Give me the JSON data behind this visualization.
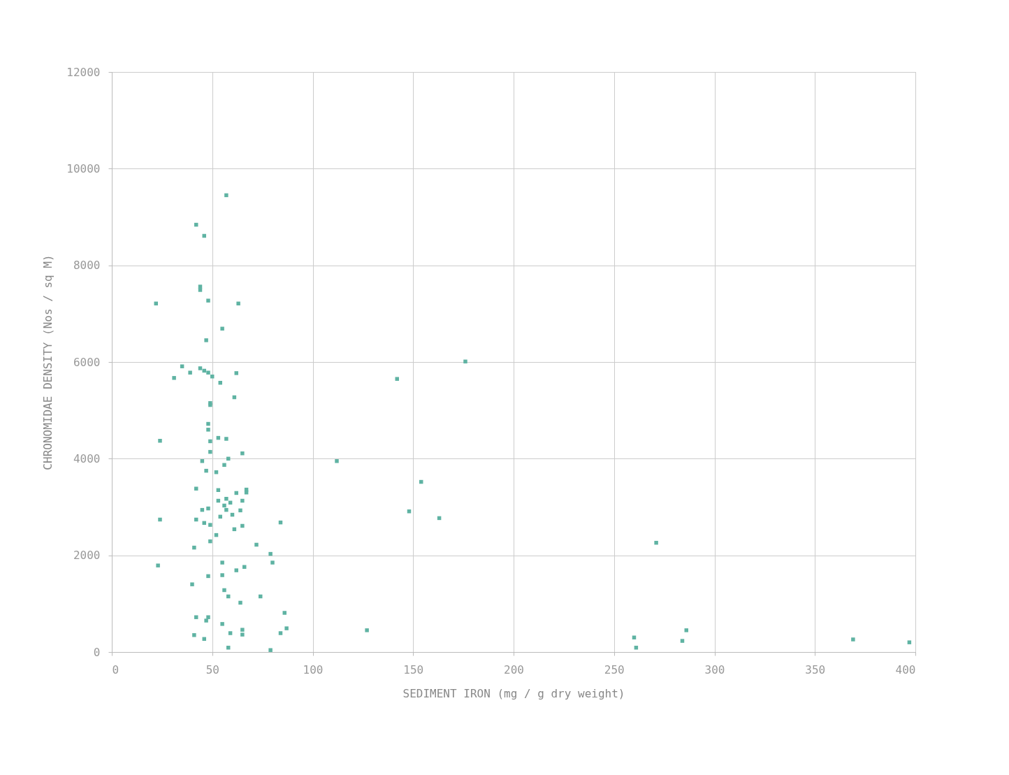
{
  "chart_data": {
    "type": "scatter",
    "xlabel": "SEDIMENT IRON (mg / g dry weight)",
    "ylabel": "CHRONOMIDAE DENSITY (Nos / sq M)",
    "xlim": [
      0,
      400
    ],
    "xticks": [
      0,
      50,
      100,
      150,
      200,
      250,
      300,
      350,
      400
    ],
    "ylim": [
      0,
      12000
    ],
    "yticks": [
      0,
      2000,
      4000,
      6000,
      8000,
      10000,
      12000
    ],
    "grid": true,
    "marker": "square",
    "series": [
      {
        "color": "#5fb3a3",
        "x": [
          57,
          42,
          46,
          44,
          44,
          48,
          22,
          63,
          55,
          47,
          35,
          31,
          39,
          44,
          46,
          48,
          50,
          62,
          54,
          49,
          61,
          49,
          48,
          48,
          53,
          57,
          49,
          49,
          65,
          58,
          45,
          56,
          47,
          52,
          24,
          42,
          53,
          62,
          67,
          67,
          53,
          57,
          65,
          56,
          59,
          45,
          48,
          57,
          64,
          54,
          60,
          24,
          42,
          46,
          49,
          61,
          65,
          84,
          52,
          49,
          41,
          72,
          79,
          80,
          23,
          55,
          48,
          55,
          62,
          66,
          40,
          56,
          58,
          64,
          74,
          86,
          87,
          84,
          42,
          48,
          47,
          41,
          46,
          55,
          59,
          65,
          65,
          58,
          79,
          112,
          142,
          176,
          154,
          148,
          163,
          127,
          271,
          260,
          261,
          286,
          284,
          369,
          397
        ],
        "values": [
          9450,
          8840,
          8610,
          7560,
          7490,
          7270,
          7210,
          7210,
          6690,
          6450,
          5910,
          5670,
          5780,
          5870,
          5820,
          5780,
          5700,
          5770,
          5570,
          5150,
          5270,
          5110,
          4720,
          4600,
          4430,
          4410,
          4360,
          4140,
          4110,
          4000,
          3950,
          3870,
          3750,
          3720,
          4370,
          3380,
          3350,
          3290,
          3360,
          3300,
          3130,
          3170,
          3130,
          3030,
          3090,
          2940,
          2970,
          2940,
          2930,
          2800,
          2840,
          2740,
          2740,
          2670,
          2630,
          2540,
          2610,
          2680,
          2420,
          2290,
          2160,
          2220,
          2030,
          1850,
          1790,
          1850,
          1570,
          1590,
          1690,
          1760,
          1400,
          1280,
          1150,
          1020,
          1150,
          810,
          490,
          390,
          720,
          720,
          650,
          350,
          270,
          580,
          390,
          460,
          360,
          90,
          40,
          3950,
          5650,
          6010,
          3520,
          2910,
          2770,
          450,
          2260,
          300,
          90,
          450,
          230,
          260,
          200
        ]
      }
    ]
  }
}
